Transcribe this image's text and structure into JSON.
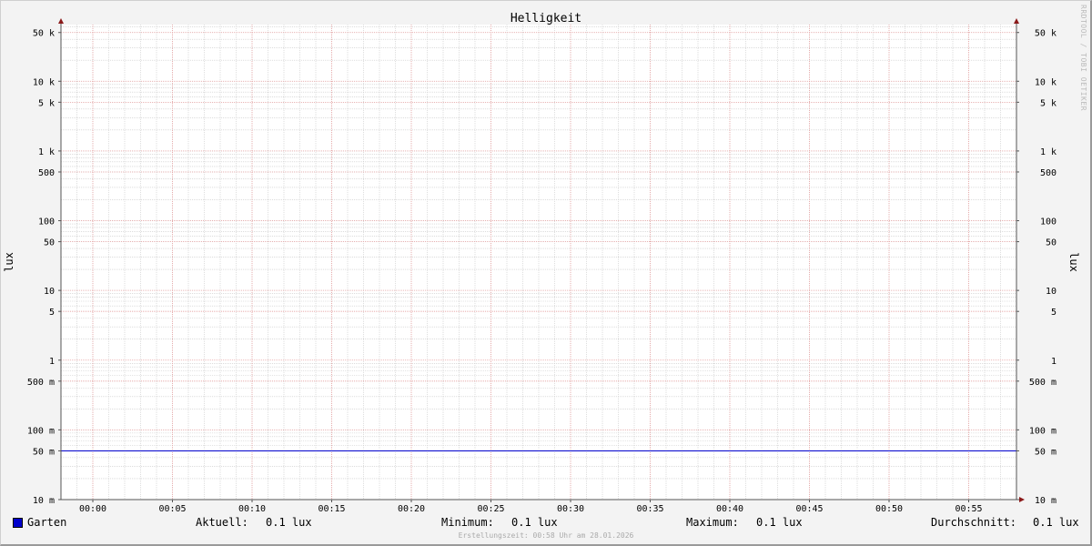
{
  "chart_data": {
    "type": "line",
    "title": "Helligkeit",
    "ylabel": "lux",
    "yscale": "log",
    "ylim": [
      0.01,
      65000
    ],
    "y_ticks": [
      {
        "value": 50000,
        "label": "50 k"
      },
      {
        "value": 10000,
        "label": "10 k"
      },
      {
        "value": 5000,
        "label": "5 k"
      },
      {
        "value": 1000,
        "label": "1 k"
      },
      {
        "value": 500,
        "label": "500"
      },
      {
        "value": 100,
        "label": "100"
      },
      {
        "value": 50,
        "label": "50"
      },
      {
        "value": 10,
        "label": "10"
      },
      {
        "value": 5,
        "label": "5"
      },
      {
        "value": 1,
        "label": "1"
      },
      {
        "value": 0.5,
        "label": "500 m"
      },
      {
        "value": 0.1,
        "label": "100 m"
      },
      {
        "value": 0.05,
        "label": "50 m"
      },
      {
        "value": 0.01,
        "label": "10 m"
      }
    ],
    "xlim": [
      "23:58",
      "00:58"
    ],
    "x_ticks": [
      "00:00",
      "00:05",
      "00:10",
      "00:15",
      "00:20",
      "00:25",
      "00:30",
      "00:35",
      "00:40",
      "00:45",
      "00:50",
      "00:55"
    ],
    "grid": true,
    "series": [
      {
        "name": "Garten",
        "color": "#0000cc",
        "x": [
          "23:58",
          "00:58"
        ],
        "y": [
          0.05,
          0.05
        ]
      }
    ]
  },
  "legend": {
    "series_name": "Garten",
    "aktuell_label": "Aktuell:",
    "aktuell_value": "0.1 lux",
    "minimum_label": "Minimum:",
    "minimum_value": "0.1 lux",
    "maximum_label": "Maximum:",
    "maximum_value": "0.1 lux",
    "durchschnitt_label": "Durchschnitt:",
    "durchschnitt_value": "0.1 lux"
  },
  "footer": "Erstellungszeit: 00:58 Uhr am 28.01.2026",
  "watermark": "RRDTOOL / TOBI OETIKER",
  "colors": {
    "major_grid": "#e6a0a0",
    "minor_grid": "#c8c8c8",
    "axis": "#555555",
    "arrow": "#8b1a1a",
    "background": "#f3f3f3",
    "plot": "#ffffff"
  }
}
